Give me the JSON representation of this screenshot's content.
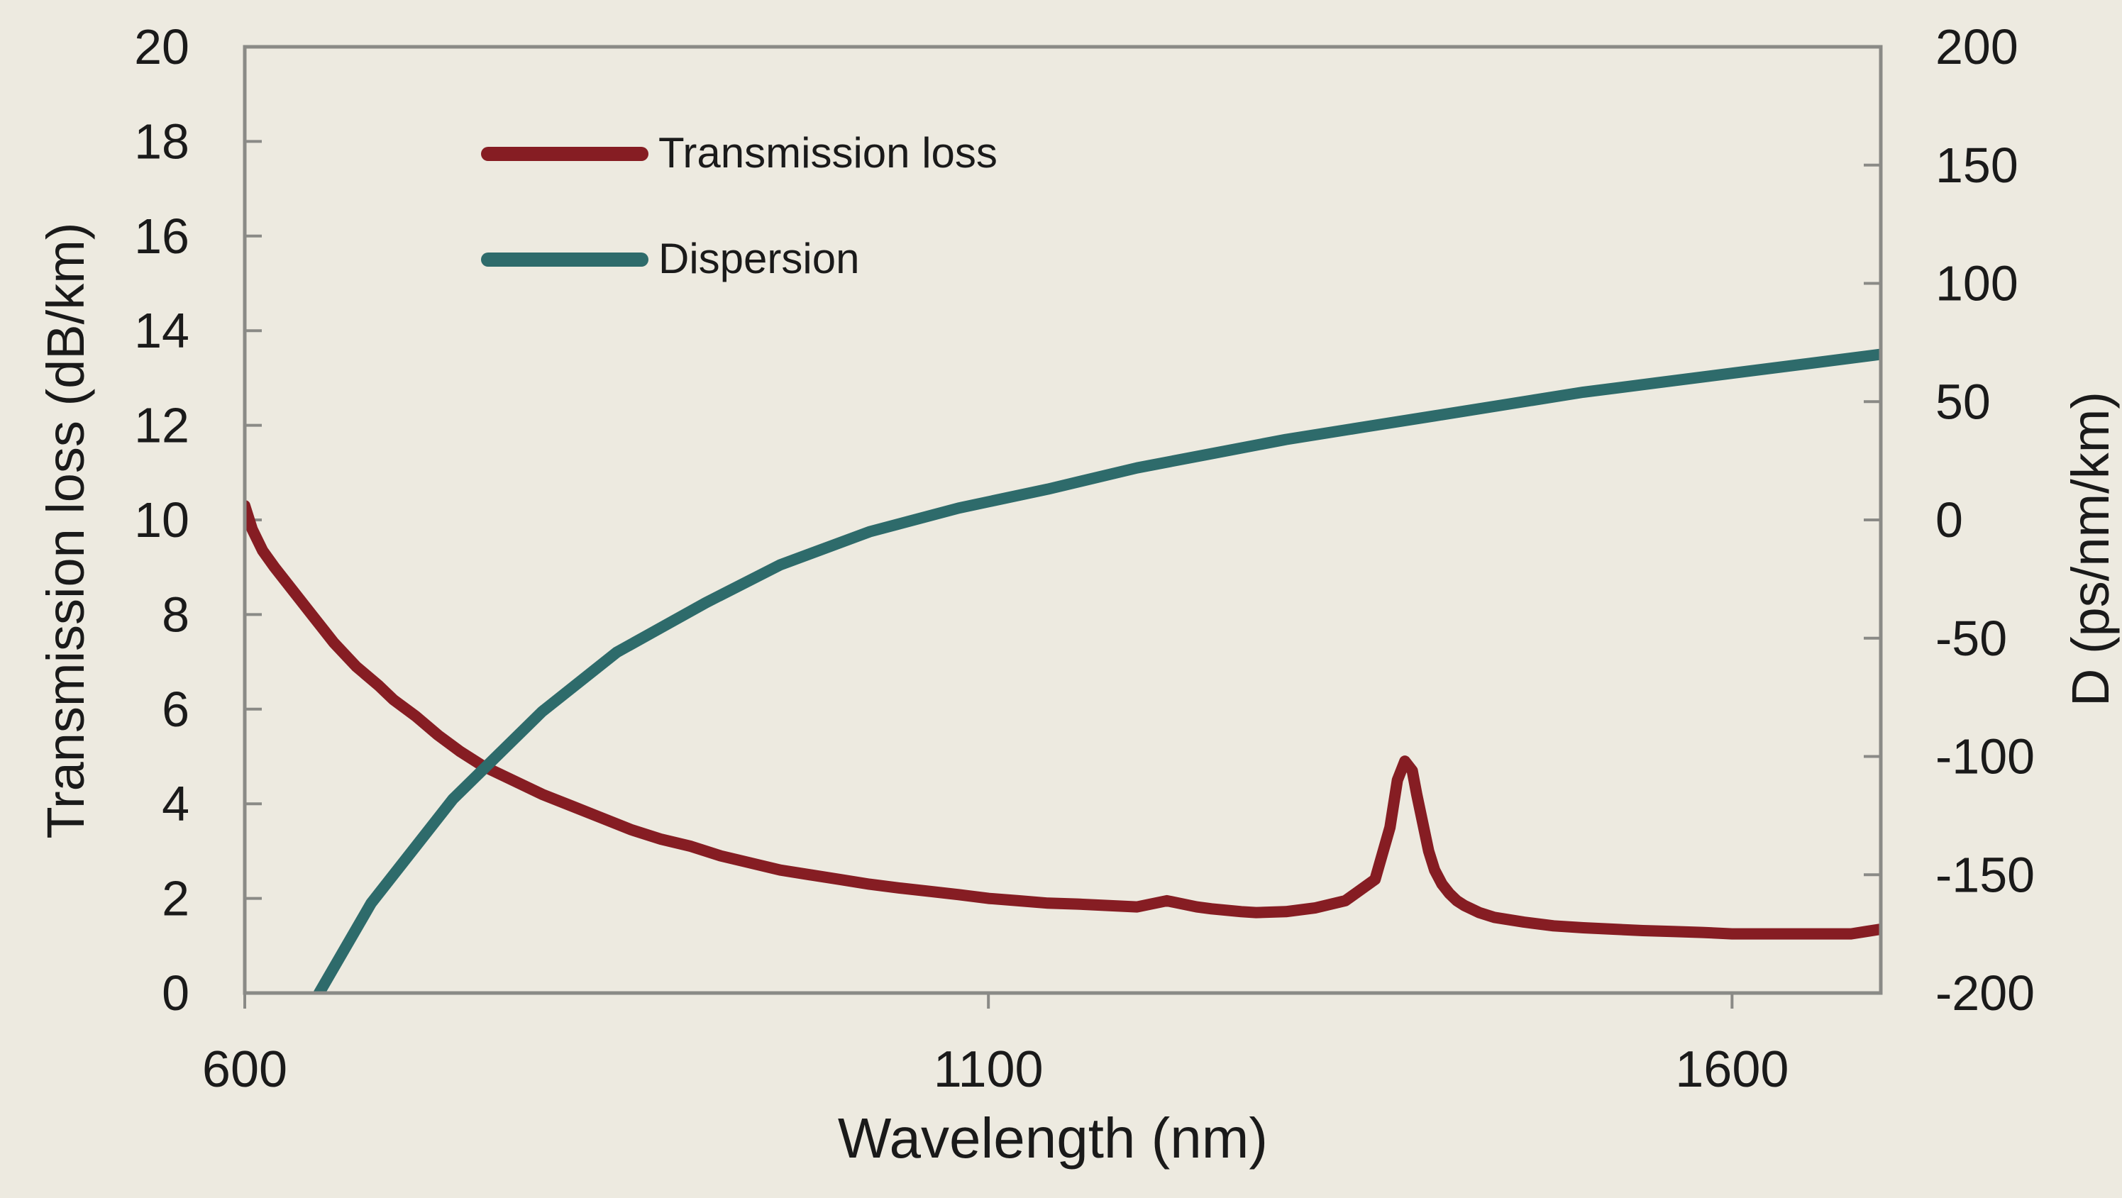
{
  "colors": {
    "background": "#edeae0",
    "axis": "#8a8a86",
    "loss": "#861d23",
    "dispersion": "#2e6b6b",
    "text": "#1a1a1a"
  },
  "chart_data": {
    "type": "line",
    "xlabel": "Wavelength (nm)",
    "ylabel_left": "Transmission loss (dB/km)",
    "ylabel_right": "D (ps/nm/km)",
    "xlim": [
      600,
      1700
    ],
    "ylim_left": [
      0,
      20
    ],
    "ylim_right": [
      -200,
      200
    ],
    "x_ticks": [
      600,
      1100,
      1600
    ],
    "x_tick_labels": [
      "600",
      "1100",
      "1600"
    ],
    "y_left_ticks": [
      0,
      2,
      4,
      6,
      8,
      10,
      12,
      14,
      16,
      18,
      20
    ],
    "y_left_tick_labels": [
      "0",
      "2",
      "4",
      "6",
      "8",
      "10",
      "12",
      "14",
      "16",
      "18",
      "20"
    ],
    "y_right_ticks": [
      -200,
      -150,
      -100,
      -50,
      0,
      50,
      100,
      150,
      200
    ],
    "y_right_tick_labels": [
      "-200",
      "-150",
      "-100",
      "-50",
      "0",
      "50",
      "100",
      "150",
      "200"
    ],
    "grid": false,
    "legend_position": "top-left",
    "series": [
      {
        "name": "Transmission loss",
        "axis": "left",
        "x": [
          600,
          605,
          612,
          620,
          630,
          645,
          660,
          675,
          690,
          700,
          715,
          730,
          745,
          760,
          780,
          800,
          820,
          840,
          860,
          880,
          900,
          920,
          940,
          960,
          980,
          1000,
          1020,
          1040,
          1060,
          1080,
          1100,
          1120,
          1140,
          1160,
          1180,
          1200,
          1220,
          1240,
          1250,
          1260,
          1270,
          1280,
          1300,
          1320,
          1340,
          1360,
          1370,
          1375,
          1380,
          1385,
          1388,
          1392,
          1396,
          1400,
          1405,
          1410,
          1415,
          1420,
          1430,
          1440,
          1460,
          1480,
          1500,
          1520,
          1540,
          1560,
          1580,
          1600,
          1620,
          1640,
          1660,
          1680,
          1690,
          1700
        ],
        "y": [
          10.3,
          9.8,
          9.35,
          9.0,
          8.6,
          8.0,
          7.4,
          6.9,
          6.5,
          6.2,
          5.85,
          5.45,
          5.1,
          4.8,
          4.5,
          4.2,
          3.95,
          3.7,
          3.45,
          3.25,
          3.1,
          2.9,
          2.75,
          2.6,
          2.5,
          2.4,
          2.3,
          2.22,
          2.15,
          2.08,
          2.0,
          1.95,
          1.9,
          1.88,
          1.85,
          1.82,
          1.95,
          1.82,
          1.78,
          1.75,
          1.72,
          1.7,
          1.72,
          1.8,
          1.95,
          2.4,
          3.5,
          4.5,
          4.9,
          4.7,
          4.2,
          3.6,
          3.0,
          2.6,
          2.3,
          2.1,
          1.95,
          1.85,
          1.7,
          1.6,
          1.5,
          1.42,
          1.38,
          1.35,
          1.32,
          1.3,
          1.28,
          1.25,
          1.25,
          1.25,
          1.25,
          1.25,
          1.3,
          1.35
        ]
      },
      {
        "name": "Dispersion",
        "axis": "right",
        "x": [
          650,
          685,
          740,
          800,
          850,
          910,
          960,
          1020,
          1080,
          1140,
          1200,
          1250,
          1300,
          1350,
          1400,
          1450,
          1500,
          1550,
          1600,
          1650,
          1700
        ],
        "y": [
          -200,
          -162,
          -118,
          -81,
          -56,
          -35,
          -19,
          -5,
          5,
          13,
          22,
          28,
          34,
          39,
          44,
          49,
          54,
          58,
          62,
          66,
          70
        ]
      }
    ]
  }
}
